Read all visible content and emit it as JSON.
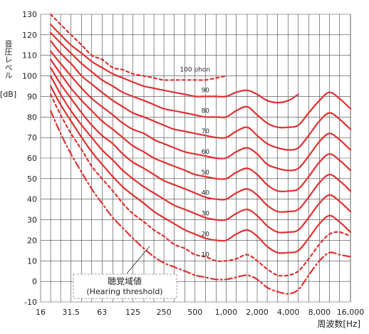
{
  "chart_data": {
    "type": "line",
    "ylabel": "音圧レベル",
    "yunit": "[dB]",
    "xlabel": "周波数[Hz]",
    "x_scale": "log",
    "xlim": [
      16,
      16000
    ],
    "ylim": [
      -10,
      130
    ],
    "x_tick_labels": [
      "16",
      "31.5",
      "63",
      "125",
      "250",
      "500",
      "1,000",
      "2,000",
      "4,000",
      "8,000",
      "16,000"
    ],
    "x_tick_values": [
      16,
      31.5,
      63,
      125,
      250,
      500,
      1000,
      2000,
      4000,
      8000,
      16000
    ],
    "y_ticks": [
      -10,
      0,
      10,
      20,
      30,
      40,
      50,
      60,
      70,
      80,
      90,
      100,
      110,
      120,
      130
    ],
    "grid": true,
    "line_color": "#e03030",
    "annotation": {
      "line1": "聴覚域値",
      "line2": "(Hearing threshold)"
    },
    "series": [
      {
        "label": "100 phon",
        "style": "dashed",
        "points": [
          [
            20,
            130
          ],
          [
            25,
            125
          ],
          [
            31.5,
            120
          ],
          [
            40,
            115
          ],
          [
            50,
            110
          ],
          [
            63,
            108
          ],
          [
            80,
            104
          ],
          [
            100,
            103
          ],
          [
            125,
            101
          ],
          [
            160,
            100
          ],
          [
            200,
            99
          ],
          [
            250,
            98
          ],
          [
            315,
            98
          ],
          [
            400,
            98
          ],
          [
            500,
            98
          ],
          [
            630,
            98
          ],
          [
            800,
            99
          ],
          [
            1000,
            100
          ]
        ]
      },
      {
        "label": "90",
        "style": "solid",
        "points": [
          [
            20,
            125
          ],
          [
            25,
            120
          ],
          [
            31.5,
            115
          ],
          [
            40,
            111
          ],
          [
            50,
            107
          ],
          [
            63,
            104
          ],
          [
            80,
            101
          ],
          [
            100,
            99
          ],
          [
            125,
            97
          ],
          [
            160,
            95
          ],
          [
            200,
            94
          ],
          [
            250,
            93
          ],
          [
            315,
            92
          ],
          [
            400,
            91
          ],
          [
            500,
            90
          ],
          [
            630,
            90
          ],
          [
            800,
            90
          ],
          [
            1000,
            90
          ],
          [
            1250,
            92
          ],
          [
            1600,
            93
          ],
          [
            2000,
            91
          ],
          [
            2500,
            88
          ],
          [
            3150,
            87
          ],
          [
            4000,
            88
          ],
          [
            5000,
            91
          ]
        ]
      },
      {
        "label": "80",
        "style": "solid",
        "points": [
          [
            20,
            121
          ],
          [
            25,
            116
          ],
          [
            31.5,
            111
          ],
          [
            40,
            106
          ],
          [
            50,
            102
          ],
          [
            63,
            98
          ],
          [
            80,
            95
          ],
          [
            100,
            92
          ],
          [
            125,
            90
          ],
          [
            160,
            88
          ],
          [
            200,
            86
          ],
          [
            250,
            84
          ],
          [
            315,
            83
          ],
          [
            400,
            82
          ],
          [
            500,
            81
          ],
          [
            630,
            80
          ],
          [
            800,
            80
          ],
          [
            1000,
            80
          ],
          [
            1250,
            83
          ],
          [
            1600,
            85
          ],
          [
            2000,
            81
          ],
          [
            2500,
            77
          ],
          [
            3150,
            75
          ],
          [
            4000,
            75
          ],
          [
            5000,
            76
          ],
          [
            6300,
            82
          ],
          [
            8000,
            88
          ],
          [
            10000,
            92
          ],
          [
            12500,
            89
          ],
          [
            16000,
            84
          ]
        ]
      },
      {
        "label": "70",
        "style": "solid",
        "points": [
          [
            20,
            117
          ],
          [
            25,
            111
          ],
          [
            31.5,
            106
          ],
          [
            40,
            100
          ],
          [
            50,
            96
          ],
          [
            63,
            92
          ],
          [
            80,
            88
          ],
          [
            100,
            85
          ],
          [
            125,
            82
          ],
          [
            160,
            80
          ],
          [
            200,
            78
          ],
          [
            250,
            76
          ],
          [
            315,
            74
          ],
          [
            400,
            73
          ],
          [
            500,
            72
          ],
          [
            630,
            71
          ],
          [
            800,
            70
          ],
          [
            1000,
            70
          ],
          [
            1250,
            73
          ],
          [
            1600,
            75
          ],
          [
            2000,
            71
          ],
          [
            2500,
            67
          ],
          [
            3150,
            65
          ],
          [
            4000,
            64
          ],
          [
            5000,
            65
          ],
          [
            6300,
            71
          ],
          [
            8000,
            78
          ],
          [
            10000,
            82
          ],
          [
            12500,
            79
          ],
          [
            16000,
            74
          ]
        ]
      },
      {
        "label": "60",
        "style": "solid",
        "points": [
          [
            20,
            112
          ],
          [
            25,
            106
          ],
          [
            31.5,
            100
          ],
          [
            40,
            94
          ],
          [
            50,
            89
          ],
          [
            63,
            85
          ],
          [
            80,
            81
          ],
          [
            100,
            77
          ],
          [
            125,
            74
          ],
          [
            160,
            72
          ],
          [
            200,
            69
          ],
          [
            250,
            67
          ],
          [
            315,
            65
          ],
          [
            400,
            63
          ],
          [
            500,
            62
          ],
          [
            630,
            61
          ],
          [
            800,
            60
          ],
          [
            1000,
            60
          ],
          [
            1250,
            63
          ],
          [
            1600,
            65
          ],
          [
            2000,
            62
          ],
          [
            2500,
            57
          ],
          [
            3150,
            55
          ],
          [
            4000,
            54
          ],
          [
            5000,
            55
          ],
          [
            6300,
            61
          ],
          [
            8000,
            68
          ],
          [
            10000,
            72
          ],
          [
            12500,
            69
          ],
          [
            16000,
            64
          ]
        ]
      },
      {
        "label": "50",
        "style": "solid",
        "points": [
          [
            20,
            108
          ],
          [
            25,
            101
          ],
          [
            31.5,
            94
          ],
          [
            40,
            88
          ],
          [
            50,
            83
          ],
          [
            63,
            78
          ],
          [
            80,
            74
          ],
          [
            100,
            70
          ],
          [
            125,
            66
          ],
          [
            160,
            63
          ],
          [
            200,
            60
          ],
          [
            250,
            58
          ],
          [
            315,
            56
          ],
          [
            400,
            54
          ],
          [
            500,
            52
          ],
          [
            630,
            51
          ],
          [
            800,
            50
          ],
          [
            1000,
            50
          ],
          [
            1250,
            53
          ],
          [
            1600,
            55
          ],
          [
            2000,
            52
          ],
          [
            2500,
            47
          ],
          [
            3150,
            44
          ],
          [
            4000,
            44
          ],
          [
            5000,
            45
          ],
          [
            6300,
            51
          ],
          [
            8000,
            58
          ],
          [
            10000,
            62
          ],
          [
            12500,
            59
          ],
          [
            16000,
            54
          ]
        ]
      },
      {
        "label": "40",
        "style": "solid",
        "points": [
          [
            20,
            104
          ],
          [
            25,
            96
          ],
          [
            31.5,
            89
          ],
          [
            40,
            82
          ],
          [
            50,
            76
          ],
          [
            63,
            71
          ],
          [
            80,
            67
          ],
          [
            100,
            62
          ],
          [
            125,
            58
          ],
          [
            160,
            55
          ],
          [
            200,
            52
          ],
          [
            250,
            49
          ],
          [
            315,
            47
          ],
          [
            400,
            45
          ],
          [
            500,
            43
          ],
          [
            630,
            41
          ],
          [
            800,
            40
          ],
          [
            1000,
            40
          ],
          [
            1250,
            43
          ],
          [
            1600,
            45
          ],
          [
            2000,
            42
          ],
          [
            2500,
            37
          ],
          [
            3150,
            34
          ],
          [
            4000,
            34
          ],
          [
            5000,
            35
          ],
          [
            6300,
            41
          ],
          [
            8000,
            48
          ],
          [
            10000,
            52
          ],
          [
            12500,
            49
          ],
          [
            16000,
            44
          ]
        ]
      },
      {
        "label": "30",
        "style": "solid",
        "points": [
          [
            20,
            100
          ],
          [
            25,
            91
          ],
          [
            31.5,
            83
          ],
          [
            40,
            76
          ],
          [
            50,
            70
          ],
          [
            63,
            64
          ],
          [
            80,
            59
          ],
          [
            100,
            54
          ],
          [
            125,
            50
          ],
          [
            160,
            46
          ],
          [
            200,
            43
          ],
          [
            250,
            40
          ],
          [
            315,
            37
          ],
          [
            400,
            35
          ],
          [
            500,
            33
          ],
          [
            630,
            31
          ],
          [
            800,
            30
          ],
          [
            1000,
            30
          ],
          [
            1250,
            33
          ],
          [
            1600,
            35
          ],
          [
            2000,
            32
          ],
          [
            2500,
            27
          ],
          [
            3150,
            24
          ],
          [
            4000,
            24
          ],
          [
            5000,
            25
          ],
          [
            6300,
            31
          ],
          [
            8000,
            38
          ],
          [
            10000,
            42
          ],
          [
            12500,
            39
          ],
          [
            16000,
            34
          ]
        ]
      },
      {
        "label": "20",
        "style": "solid",
        "points": [
          [
            20,
            95
          ],
          [
            25,
            86
          ],
          [
            31.5,
            78
          ],
          [
            40,
            70
          ],
          [
            50,
            63
          ],
          [
            63,
            57
          ],
          [
            80,
            51
          ],
          [
            100,
            46
          ],
          [
            125,
            42
          ],
          [
            160,
            38
          ],
          [
            200,
            34
          ],
          [
            250,
            31
          ],
          [
            315,
            28
          ],
          [
            400,
            25
          ],
          [
            500,
            23
          ],
          [
            630,
            21
          ],
          [
            800,
            20
          ],
          [
            1000,
            20
          ],
          [
            1250,
            23
          ],
          [
            1600,
            25
          ],
          [
            2000,
            22
          ],
          [
            2500,
            17
          ],
          [
            3150,
            14
          ],
          [
            4000,
            14
          ],
          [
            5000,
            15
          ],
          [
            6300,
            21
          ],
          [
            8000,
            28
          ],
          [
            10000,
            32
          ],
          [
            12500,
            29
          ],
          [
            16000,
            24
          ]
        ]
      },
      {
        "label": "10",
        "style": "dashed",
        "points": [
          [
            20,
            91
          ],
          [
            25,
            81
          ],
          [
            31.5,
            72
          ],
          [
            40,
            64
          ],
          [
            50,
            56
          ],
          [
            63,
            50
          ],
          [
            80,
            44
          ],
          [
            100,
            38
          ],
          [
            125,
            33
          ],
          [
            160,
            29
          ],
          [
            200,
            25
          ],
          [
            250,
            22
          ],
          [
            315,
            18
          ],
          [
            400,
            16
          ],
          [
            500,
            13
          ],
          [
            630,
            12
          ],
          [
            800,
            10
          ],
          [
            1000,
            10
          ],
          [
            1250,
            11
          ],
          [
            1600,
            13
          ],
          [
            2000,
            10
          ],
          [
            2500,
            6
          ],
          [
            3150,
            3
          ],
          [
            4000,
            3
          ],
          [
            5000,
            5
          ],
          [
            6300,
            11
          ],
          [
            8000,
            18
          ],
          [
            10000,
            23
          ],
          [
            12500,
            24
          ],
          [
            16000,
            22
          ]
        ]
      },
      {
        "label": "threshold",
        "style": "dashdot",
        "points": [
          [
            20,
            83
          ],
          [
            25,
            72
          ],
          [
            31.5,
            62
          ],
          [
            40,
            53
          ],
          [
            50,
            45
          ],
          [
            63,
            38
          ],
          [
            80,
            31
          ],
          [
            100,
            26
          ],
          [
            125,
            21
          ],
          [
            160,
            16
          ],
          [
            200,
            12
          ],
          [
            250,
            9
          ],
          [
            315,
            7
          ],
          [
            400,
            5
          ],
          [
            500,
            3
          ],
          [
            630,
            2
          ],
          [
            800,
            1
          ],
          [
            1000,
            1
          ],
          [
            1250,
            2
          ],
          [
            1600,
            3
          ],
          [
            2000,
            1
          ],
          [
            2500,
            -3
          ],
          [
            3150,
            -5
          ],
          [
            4000,
            -6
          ],
          [
            5000,
            -4
          ],
          [
            6300,
            3
          ],
          [
            8000,
            10
          ],
          [
            10000,
            14
          ],
          [
            12500,
            13
          ],
          [
            16000,
            12
          ]
        ]
      }
    ]
  }
}
